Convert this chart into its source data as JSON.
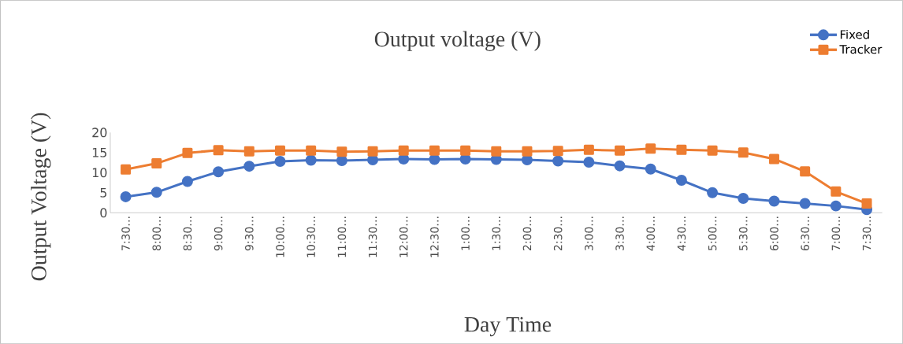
{
  "chart_data": {
    "type": "line",
    "title": "Output voltage (V)",
    "xlabel": "Day Time",
    "ylabel": "Output Voltage (V)",
    "categories": [
      "7:30…",
      "8:00…",
      "8:30…",
      "9:00…",
      "9:30…",
      "10:00…",
      "10:30…",
      "11:00…",
      "11:30…",
      "12:00…",
      "12:30…",
      "1:00…",
      "1:30…",
      "2:00…",
      "2:30…",
      "3:00…",
      "3:30…",
      "4:00…",
      "4:30…",
      "5:00…",
      "5:30…",
      "6:00…",
      "6:30…",
      "7:00…",
      "7:30…"
    ],
    "series": [
      {
        "name": "Fixed",
        "color": "#4472c4",
        "marker": "circle",
        "values": [
          4.0,
          5.1,
          7.8,
          10.2,
          11.6,
          12.8,
          13.1,
          13.0,
          13.2,
          13.4,
          13.3,
          13.4,
          13.3,
          13.2,
          12.9,
          12.6,
          11.7,
          10.9,
          8.1,
          5.0,
          3.6,
          2.9,
          2.3,
          1.7,
          0.8
        ]
      },
      {
        "name": "Tracker",
        "color": "#ed7d31",
        "marker": "square",
        "values": [
          10.8,
          12.3,
          14.9,
          15.6,
          15.3,
          15.5,
          15.5,
          15.2,
          15.3,
          15.5,
          15.5,
          15.5,
          15.3,
          15.3,
          15.4,
          15.7,
          15.5,
          16.0,
          15.7,
          15.5,
          15.0,
          13.4,
          10.3,
          5.3,
          2.3
        ]
      }
    ],
    "ylim": [
      0,
      20
    ],
    "yticks": [
      0,
      5,
      10,
      15,
      20
    ],
    "grid": false,
    "legend": "top right",
    "line_style": "solid"
  }
}
